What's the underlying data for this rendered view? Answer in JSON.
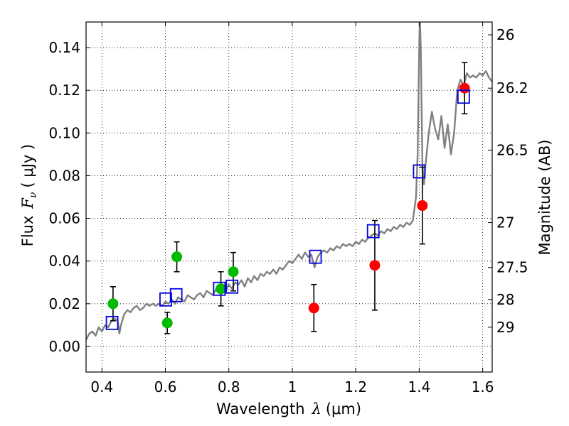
{
  "chart_data": {
    "type": "scatter",
    "xlabel": "Wavelength",
    "xlabel_symbol": "λ",
    "xlabel_unit": "(μm)",
    "ylabel": "Flux",
    "ylabel_symbol": "F",
    "ylabel_subscript": "ν",
    "ylabel_unit": "( μJy )",
    "right_ylabel": "Magnitude (AB)",
    "xlim": [
      0.35,
      1.63
    ],
    "ylim": [
      -0.012,
      0.152
    ],
    "x_ticks": [
      0.4,
      0.6,
      0.8,
      1,
      1.2,
      1.4,
      1.6
    ],
    "x_tick_labels": [
      "0.4",
      "0.6",
      "0.8",
      "1",
      "1.2",
      "1.4",
      "1.6"
    ],
    "y_ticks": [
      0.0,
      0.02,
      0.04,
      0.06,
      0.08,
      0.1,
      0.12,
      0.14
    ],
    "y_tick_labels": [
      "0.00",
      "0.02",
      "0.04",
      "0.06",
      "0.08",
      "0.10",
      "0.12",
      "0.14"
    ],
    "right_ticks": [
      {
        "label": "26",
        "flux": 0.146
      },
      {
        "label": "26.2",
        "flux": 0.121
      },
      {
        "label": "26.5",
        "flux": 0.092
      },
      {
        "label": "27",
        "flux": 0.058
      },
      {
        "label": "27.5",
        "flux": 0.037
      },
      {
        "label": "28",
        "flux": 0.022
      },
      {
        "label": "29",
        "flux": 0.009
      }
    ],
    "grid": true,
    "colors": {
      "green": "#00bb00",
      "red": "#ff0000",
      "model_box": "#0000dd",
      "spectrum": "#808080",
      "errorbar": "#000000"
    },
    "series": [
      {
        "name": "green detections",
        "marker": "circle",
        "color": "green",
        "points": [
          {
            "x": 0.435,
            "y": 0.02,
            "err": 0.008
          },
          {
            "x": 0.606,
            "y": 0.011,
            "err": 0.005
          },
          {
            "x": 0.636,
            "y": 0.042,
            "err": 0.007
          },
          {
            "x": 0.775,
            "y": 0.027,
            "err": 0.008
          },
          {
            "x": 0.814,
            "y": 0.035,
            "err": 0.009
          }
        ]
      },
      {
        "name": "red detections",
        "marker": "circle",
        "color": "red",
        "points": [
          {
            "x": 1.068,
            "y": 0.018,
            "err": 0.011
          },
          {
            "x": 1.26,
            "y": 0.038,
            "err": 0.021
          },
          {
            "x": 1.41,
            "y": 0.066,
            "err": 0.018
          },
          {
            "x": 1.543,
            "y": 0.121,
            "err": 0.012
          }
        ]
      },
      {
        "name": "model photometry",
        "marker": "square",
        "color": "model_box",
        "points": [
          {
            "x": 0.432,
            "y": 0.011
          },
          {
            "x": 0.601,
            "y": 0.022
          },
          {
            "x": 0.634,
            "y": 0.024
          },
          {
            "x": 0.77,
            "y": 0.027
          },
          {
            "x": 0.81,
            "y": 0.028
          },
          {
            "x": 1.073,
            "y": 0.042
          },
          {
            "x": 1.255,
            "y": 0.054
          },
          {
            "x": 1.4,
            "y": 0.082
          },
          {
            "x": 1.54,
            "y": 0.117
          }
        ]
      }
    ],
    "spectrum": {
      "name": "model SED",
      "x": [
        0.35,
        0.36,
        0.37,
        0.38,
        0.39,
        0.4,
        0.41,
        0.42,
        0.43,
        0.44,
        0.45,
        0.455,
        0.46,
        0.47,
        0.48,
        0.49,
        0.5,
        0.51,
        0.52,
        0.53,
        0.54,
        0.55,
        0.56,
        0.57,
        0.58,
        0.59,
        0.6,
        0.61,
        0.62,
        0.63,
        0.64,
        0.65,
        0.66,
        0.67,
        0.68,
        0.69,
        0.7,
        0.71,
        0.72,
        0.73,
        0.74,
        0.75,
        0.76,
        0.77,
        0.78,
        0.79,
        0.8,
        0.81,
        0.82,
        0.83,
        0.84,
        0.85,
        0.86,
        0.87,
        0.88,
        0.89,
        0.9,
        0.91,
        0.92,
        0.93,
        0.94,
        0.95,
        0.96,
        0.97,
        0.98,
        0.99,
        1.0,
        1.01,
        1.02,
        1.03,
        1.04,
        1.05,
        1.06,
        1.07,
        1.08,
        1.09,
        1.1,
        1.11,
        1.12,
        1.13,
        1.14,
        1.15,
        1.16,
        1.17,
        1.18,
        1.19,
        1.2,
        1.21,
        1.22,
        1.23,
        1.24,
        1.25,
        1.26,
        1.27,
        1.28,
        1.29,
        1.3,
        1.31,
        1.32,
        1.33,
        1.34,
        1.35,
        1.36,
        1.37,
        1.38,
        1.39,
        1.395,
        1.4,
        1.402,
        1.405,
        1.41,
        1.415,
        1.42,
        1.43,
        1.44,
        1.45,
        1.46,
        1.47,
        1.48,
        1.49,
        1.5,
        1.51,
        1.52,
        1.53,
        1.54,
        1.55,
        1.56,
        1.57,
        1.58,
        1.59,
        1.6,
        1.61,
        1.62,
        1.63
      ],
      "y": [
        0.003,
        0.006,
        0.007,
        0.005,
        0.009,
        0.007,
        0.01,
        0.009,
        0.012,
        0.013,
        0.012,
        0.006,
        0.01,
        0.015,
        0.017,
        0.016,
        0.018,
        0.019,
        0.017,
        0.018,
        0.02,
        0.019,
        0.02,
        0.019,
        0.02,
        0.019,
        0.021,
        0.02,
        0.022,
        0.02,
        0.023,
        0.022,
        0.021,
        0.024,
        0.023,
        0.022,
        0.024,
        0.025,
        0.023,
        0.026,
        0.025,
        0.024,
        0.027,
        0.026,
        0.028,
        0.026,
        0.029,
        0.027,
        0.03,
        0.029,
        0.031,
        0.028,
        0.032,
        0.03,
        0.033,
        0.031,
        0.034,
        0.033,
        0.035,
        0.034,
        0.036,
        0.034,
        0.037,
        0.036,
        0.038,
        0.04,
        0.039,
        0.041,
        0.043,
        0.041,
        0.044,
        0.042,
        0.043,
        0.037,
        0.042,
        0.044,
        0.045,
        0.044,
        0.046,
        0.045,
        0.047,
        0.046,
        0.048,
        0.047,
        0.048,
        0.047,
        0.049,
        0.048,
        0.05,
        0.049,
        0.051,
        0.052,
        0.053,
        0.052,
        0.054,
        0.053,
        0.055,
        0.054,
        0.056,
        0.055,
        0.057,
        0.056,
        0.058,
        0.057,
        0.059,
        0.07,
        0.09,
        0.14,
        0.155,
        0.14,
        0.085,
        0.076,
        0.085,
        0.1,
        0.11,
        0.102,
        0.097,
        0.108,
        0.093,
        0.104,
        0.09,
        0.1,
        0.12,
        0.125,
        0.122,
        0.128,
        0.126,
        0.127,
        0.126,
        0.128,
        0.127,
        0.129,
        0.126,
        0.124
      ]
    }
  }
}
